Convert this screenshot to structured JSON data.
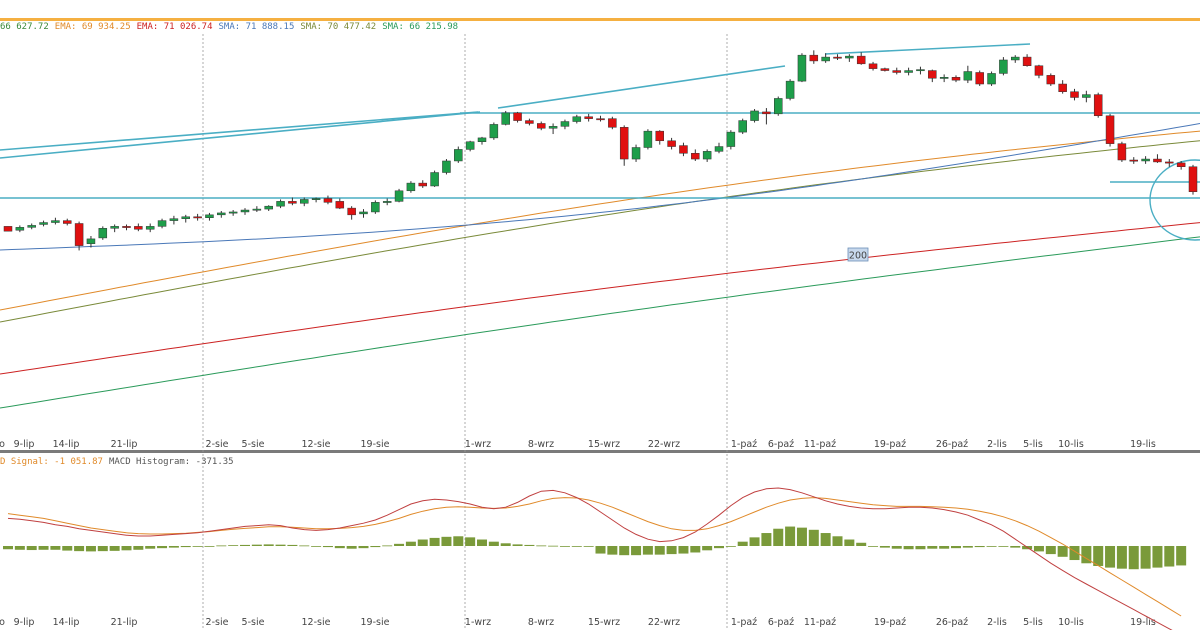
{
  "legend_top": [
    {
      "text": "66 627.72",
      "color": "#3a8a3a"
    },
    {
      "text": "EMA: 69 934.25",
      "color": "#e08a2a"
    },
    {
      "text": "EMA: 71 026.74",
      "color": "#cc2222"
    },
    {
      "text": "SMA: 71 888.15",
      "color": "#4a78b8"
    },
    {
      "text": "SMA: 70 477.42",
      "color": "#7a8a3a"
    },
    {
      "text": "SMA: 66 215.98",
      "color": "#2a9a5a"
    }
  ],
  "legend_macd": [
    {
      "text": "D Signal: -1 051.87",
      "color": "#e08a2a"
    },
    {
      "text": "MACD Histogram: -371.35",
      "color": "#555555"
    }
  ],
  "ma_badge": "200",
  "colors": {
    "up": "#1e9e4a",
    "down": "#e01010",
    "trendline": "#4aaec4",
    "hist": "#7a9a3a",
    "macd": "#c04040",
    "signal": "#e08a2a"
  },
  "chart_data": {
    "type": "candlestick",
    "x_tick_labels": [
      "o",
      "9-lip",
      "14-lip",
      "21-lip",
      "2-sie",
      "5-sie",
      "12-sie",
      "19-sie",
      "1-wrz",
      "8-wrz",
      "15-wrz",
      "22-wrz",
      "1-paź",
      "6-paź",
      "11-paź",
      "19-paź",
      "26-paź",
      "2-lis",
      "5-lis",
      "10-lis",
      "19-lis"
    ],
    "y_axis_visible": false,
    "ohlc": [
      [
        84.0,
        84.0,
        83.5,
        83.5
      ],
      [
        83.6,
        84.1,
        83.4,
        83.9
      ],
      [
        83.9,
        84.3,
        83.7,
        84.1
      ],
      [
        84.2,
        84.6,
        84.0,
        84.4
      ],
      [
        84.4,
        84.9,
        84.2,
        84.6
      ],
      [
        84.6,
        84.8,
        84.1,
        84.3
      ],
      [
        84.3,
        84.5,
        81.5,
        82.0
      ],
      [
        82.2,
        83.0,
        81.8,
        82.7
      ],
      [
        82.8,
        84.0,
        82.6,
        83.8
      ],
      [
        83.8,
        84.2,
        83.4,
        84.0
      ],
      [
        84.0,
        84.2,
        83.6,
        83.9
      ],
      [
        84.0,
        84.3,
        83.5,
        83.7
      ],
      [
        83.7,
        84.3,
        83.4,
        84.0
      ],
      [
        84.0,
        84.8,
        83.8,
        84.6
      ],
      [
        84.6,
        85.1,
        84.2,
        84.8
      ],
      [
        84.8,
        85.2,
        84.4,
        85.0
      ],
      [
        85.0,
        85.3,
        84.6,
        84.9
      ],
      [
        84.9,
        85.4,
        84.6,
        85.2
      ],
      [
        85.2,
        85.6,
        84.9,
        85.4
      ],
      [
        85.4,
        85.7,
        85.1,
        85.5
      ],
      [
        85.5,
        85.9,
        85.2,
        85.7
      ],
      [
        85.7,
        86.1,
        85.5,
        85.8
      ],
      [
        85.8,
        86.2,
        85.6,
        86.1
      ],
      [
        86.1,
        86.8,
        85.9,
        86.6
      ],
      [
        86.6,
        87.0,
        86.2,
        86.4
      ],
      [
        86.4,
        87.0,
        86.1,
        86.8
      ],
      [
        86.8,
        87.0,
        86.5,
        86.9
      ],
      [
        86.9,
        87.2,
        86.3,
        86.5
      ],
      [
        86.6,
        86.9,
        85.8,
        85.9
      ],
      [
        85.9,
        86.1,
        84.7,
        85.2
      ],
      [
        85.3,
        85.8,
        84.9,
        85.5
      ],
      [
        85.5,
        86.7,
        85.3,
        86.5
      ],
      [
        86.5,
        86.9,
        86.2,
        86.6
      ],
      [
        86.6,
        87.9,
        86.5,
        87.7
      ],
      [
        87.7,
        88.7,
        87.5,
        88.5
      ],
      [
        88.5,
        88.8,
        88.0,
        88.2
      ],
      [
        88.2,
        89.8,
        88.1,
        89.6
      ],
      [
        89.6,
        91.0,
        89.4,
        90.8
      ],
      [
        90.8,
        92.3,
        90.6,
        92.0
      ],
      [
        92.0,
        92.9,
        91.8,
        92.8
      ],
      [
        92.8,
        93.3,
        92.5,
        93.2
      ],
      [
        93.2,
        94.8,
        93.0,
        94.6
      ],
      [
        94.6,
        96.0,
        94.5,
        95.8
      ],
      [
        95.8,
        95.9,
        94.8,
        95.0
      ],
      [
        95.0,
        95.2,
        94.5,
        94.7
      ],
      [
        94.7,
        94.9,
        94.0,
        94.2
      ],
      [
        94.2,
        94.7,
        93.6,
        94.4
      ],
      [
        94.4,
        95.1,
        94.1,
        94.9
      ],
      [
        94.9,
        95.6,
        94.7,
        95.4
      ],
      [
        95.4,
        95.7,
        94.9,
        95.2
      ],
      [
        95.2,
        95.5,
        94.9,
        95.1
      ],
      [
        95.2,
        95.4,
        94.1,
        94.3
      ],
      [
        94.3,
        94.5,
        90.3,
        91.0
      ],
      [
        91.0,
        92.5,
        90.7,
        92.2
      ],
      [
        92.2,
        94.1,
        92.0,
        93.9
      ],
      [
        93.9,
        94.0,
        92.5,
        92.9
      ],
      [
        92.9,
        93.2,
        92.0,
        92.3
      ],
      [
        92.4,
        92.7,
        91.3,
        91.6
      ],
      [
        91.6,
        92.0,
        90.8,
        91.0
      ],
      [
        91.0,
        92.0,
        90.7,
        91.8
      ],
      [
        91.8,
        92.7,
        91.6,
        92.3
      ],
      [
        92.3,
        94.0,
        92.0,
        93.8
      ],
      [
        93.8,
        95.2,
        93.6,
        95.0
      ],
      [
        95.0,
        96.2,
        94.8,
        96.0
      ],
      [
        95.9,
        96.3,
        94.6,
        95.7
      ],
      [
        95.7,
        97.5,
        95.5,
        97.3
      ],
      [
        97.3,
        99.3,
        97.1,
        99.1
      ],
      [
        99.1,
        102.0,
        99.0,
        101.8
      ],
      [
        101.8,
        102.3,
        100.9,
        101.2
      ],
      [
        101.2,
        102.0,
        101.0,
        101.6
      ],
      [
        101.6,
        101.9,
        101.3,
        101.5
      ],
      [
        101.5,
        101.9,
        101.1,
        101.7
      ],
      [
        101.7,
        102.1,
        100.8,
        100.9
      ],
      [
        100.9,
        101.1,
        100.2,
        100.4
      ],
      [
        100.4,
        100.5,
        100.1,
        100.2
      ],
      [
        100.2,
        100.5,
        99.8,
        100.0
      ],
      [
        100.0,
        100.5,
        99.7,
        100.2
      ],
      [
        100.2,
        100.6,
        99.8,
        100.3
      ],
      [
        100.2,
        100.3,
        99.0,
        99.4
      ],
      [
        99.4,
        99.8,
        99.0,
        99.5
      ],
      [
        99.5,
        99.7,
        99.0,
        99.2
      ],
      [
        99.2,
        100.7,
        98.9,
        100.1
      ],
      [
        100.0,
        100.2,
        98.6,
        98.8
      ],
      [
        98.8,
        100.1,
        98.6,
        99.9
      ],
      [
        99.9,
        101.6,
        99.7,
        101.3
      ],
      [
        101.3,
        101.8,
        101.0,
        101.6
      ],
      [
        101.6,
        101.9,
        100.6,
        100.7
      ],
      [
        100.7,
        100.8,
        99.4,
        99.7
      ],
      [
        99.7,
        99.9,
        98.6,
        98.8
      ],
      [
        98.8,
        99.2,
        97.8,
        98.0
      ],
      [
        98.0,
        98.3,
        97.1,
        97.4
      ],
      [
        97.4,
        98.1,
        96.9,
        97.7
      ],
      [
        97.7,
        97.9,
        95.3,
        95.5
      ],
      [
        95.5,
        95.7,
        92.3,
        92.6
      ],
      [
        92.6,
        92.8,
        90.7,
        90.9
      ],
      [
        90.9,
        91.2,
        90.5,
        90.8
      ],
      [
        90.8,
        91.3,
        90.5,
        91.0
      ],
      [
        91.0,
        91.5,
        90.6,
        90.7
      ],
      [
        90.7,
        91.0,
        90.2,
        90.6
      ],
      [
        90.6,
        90.8,
        89.9,
        90.2
      ],
      [
        90.2,
        90.4,
        87.3,
        87.6
      ],
      [
        87.6,
        87.9,
        86.8,
        87.1
      ]
    ],
    "macd_histogram": [
      -0.6,
      -0.7,
      -0.75,
      -0.7,
      -0.7,
      -0.85,
      -0.95,
      -1.0,
      -0.95,
      -0.9,
      -0.8,
      -0.7,
      -0.5,
      -0.4,
      -0.3,
      -0.2,
      -0.1,
      0.0,
      0.1,
      0.15,
      0.2,
      0.25,
      0.3,
      0.25,
      0.2,
      0.1,
      0.0,
      -0.2,
      -0.4,
      -0.5,
      -0.4,
      -0.2,
      0.1,
      0.4,
      0.8,
      1.2,
      1.5,
      1.7,
      1.8,
      1.6,
      1.2,
      0.8,
      0.5,
      0.3,
      0.2,
      0.1,
      0.05,
      0.0,
      0.0,
      0.0,
      -1.4,
      -1.6,
      -1.7,
      -1.7,
      -1.6,
      -1.6,
      -1.5,
      -1.4,
      -1.2,
      -0.8,
      -0.4,
      0.0,
      0.8,
      1.6,
      2.4,
      3.2,
      3.6,
      3.4,
      3.0,
      2.4,
      1.8,
      1.2,
      0.6,
      0.0,
      -0.3,
      -0.5,
      -0.6,
      -0.6,
      -0.5,
      -0.5,
      -0.4,
      -0.3,
      -0.2,
      -0.1,
      0.0,
      -0.3,
      -0.6,
      -1.0,
      -1.5,
      -2.0,
      -2.6,
      -3.2,
      -3.7,
      -4.0,
      -4.2,
      -4.3,
      -4.2,
      -4.0,
      -3.8,
      -3.6
    ],
    "macd_line": [
      2.2,
      2.1,
      1.9,
      1.7,
      1.4,
      1.2,
      0.9,
      0.7,
      0.5,
      0.3,
      0.1,
      0.0,
      0.0,
      0.1,
      0.2,
      0.3,
      0.4,
      0.6,
      0.8,
      1.0,
      1.2,
      1.3,
      1.4,
      1.3,
      1.0,
      0.8,
      0.7,
      0.8,
      1.0,
      1.3,
      1.6,
      2.0,
      2.6,
      3.3,
      4.0,
      4.4,
      4.6,
      4.5,
      4.3,
      4.0,
      3.6,
      3.4,
      3.6,
      4.2,
      5.0,
      5.6,
      5.7,
      5.4,
      4.8,
      4.0,
      3.0,
      2.0,
      1.0,
      0.2,
      -0.4,
      -0.7,
      -0.6,
      -0.2,
      0.5,
      1.5,
      2.6,
      3.8,
      4.8,
      5.5,
      5.9,
      6.0,
      5.8,
      5.4,
      4.9,
      4.4,
      4.0,
      3.7,
      3.5,
      3.4,
      3.4,
      3.5,
      3.6,
      3.6,
      3.5,
      3.3,
      3.0,
      2.6,
      2.0,
      1.4,
      0.6,
      -0.4,
      -1.4,
      -2.4,
      -3.4,
      -4.3,
      -5.2,
      -6.0,
      -6.8,
      -7.6,
      -8.4,
      -9.2,
      -10.0,
      -10.8,
      -11.6,
      -12.4
    ],
    "macd_signal": [
      2.8,
      2.6,
      2.4,
      2.2,
      1.9,
      1.6,
      1.3,
      1.0,
      0.8,
      0.6,
      0.4,
      0.3,
      0.25,
      0.25,
      0.3,
      0.35,
      0.45,
      0.55,
      0.7,
      0.85,
      0.95,
      1.05,
      1.15,
      1.15,
      1.1,
      1.0,
      0.9,
      0.9,
      0.95,
      1.05,
      1.2,
      1.45,
      1.8,
      2.2,
      2.7,
      3.1,
      3.4,
      3.6,
      3.65,
      3.6,
      3.5,
      3.45,
      3.5,
      3.7,
      4.0,
      4.4,
      4.7,
      4.8,
      4.75,
      4.5,
      4.1,
      3.6,
      3.0,
      2.4,
      1.8,
      1.3,
      0.9,
      0.7,
      0.7,
      0.9,
      1.3,
      1.8,
      2.4,
      3.0,
      3.6,
      4.1,
      4.5,
      4.7,
      4.8,
      4.7,
      4.5,
      4.3,
      4.1,
      3.9,
      3.8,
      3.7,
      3.7,
      3.7,
      3.65,
      3.6,
      3.5,
      3.35,
      3.1,
      2.8,
      2.4,
      1.9,
      1.3,
      0.6,
      -0.2,
      -1.0,
      -1.9,
      -2.8,
      -3.7,
      -4.6,
      -5.5,
      -6.4,
      -7.3,
      -8.2,
      -9.1,
      -10.0
    ]
  }
}
